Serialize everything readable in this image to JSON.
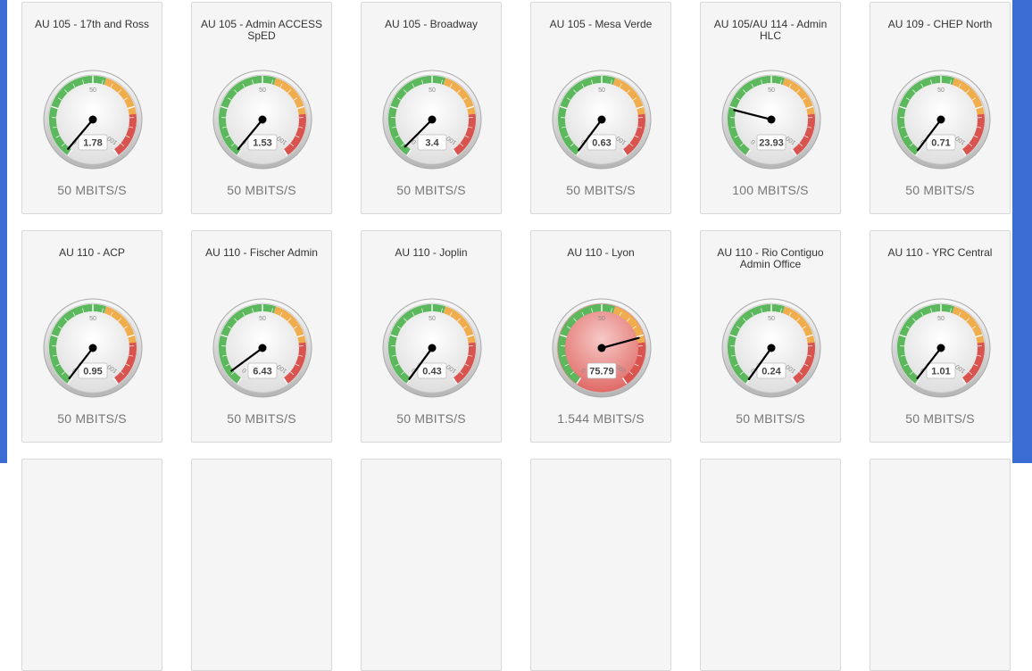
{
  "gauge": {
    "min": 0,
    "max": 100,
    "mid_label": "50",
    "min_label": "0",
    "max_label": "100"
  },
  "colors": {
    "green": "#5cb85c",
    "orange": "#f0ad4e",
    "red": "#d9534f",
    "frame": "#3a6cd4"
  },
  "tiles": [
    {
      "title": "AU 105 - 17th and Ross",
      "value": 1.78,
      "value_label": "1.78",
      "speed": "50 MBITS/S",
      "alert": false
    },
    {
      "title": "AU 105 - Admin ACCESS SpED",
      "value": 1.53,
      "value_label": "1.53",
      "speed": "50 MBITS/S",
      "alert": false
    },
    {
      "title": "AU 105 - Broadway",
      "value": 3.4,
      "value_label": "3.4",
      "speed": "50 MBITS/S",
      "alert": false
    },
    {
      "title": "AU 105 - Mesa Verde",
      "value": 0.63,
      "value_label": "0.63",
      "speed": "50 MBITS/S",
      "alert": false
    },
    {
      "title": "AU 105/AU 114 - Admin HLC",
      "value": 23.93,
      "value_label": "23.93",
      "speed": "100 MBITS/S",
      "alert": false
    },
    {
      "title": "AU 109 - CHEP North",
      "value": 0.71,
      "value_label": "0.71",
      "speed": "50 MBITS/S",
      "alert": false
    },
    {
      "title": "AU 110 - ACP",
      "value": 0.95,
      "value_label": "0.95",
      "speed": "50 MBITS/S",
      "alert": false
    },
    {
      "title": "AU 110 - Fischer Admin",
      "value": 6.43,
      "value_label": "6.43",
      "speed": "50 MBITS/S",
      "alert": false
    },
    {
      "title": "AU 110 - Joplin",
      "value": 0.43,
      "value_label": "0.43",
      "speed": "50 MBITS/S",
      "alert": false
    },
    {
      "title": "AU 110 - Lyon",
      "value": 75.79,
      "value_label": "75.79",
      "speed": "1.544 MBITS/S",
      "alert": true
    },
    {
      "title": "AU 110 - Rio Contiguo Admin Office",
      "value": 0.24,
      "value_label": "0.24",
      "speed": "50 MBITS/S",
      "alert": false
    },
    {
      "title": "AU 110 - YRC Central",
      "value": 1.01,
      "value_label": "1.01",
      "speed": "50 MBITS/S",
      "alert": false
    }
  ]
}
